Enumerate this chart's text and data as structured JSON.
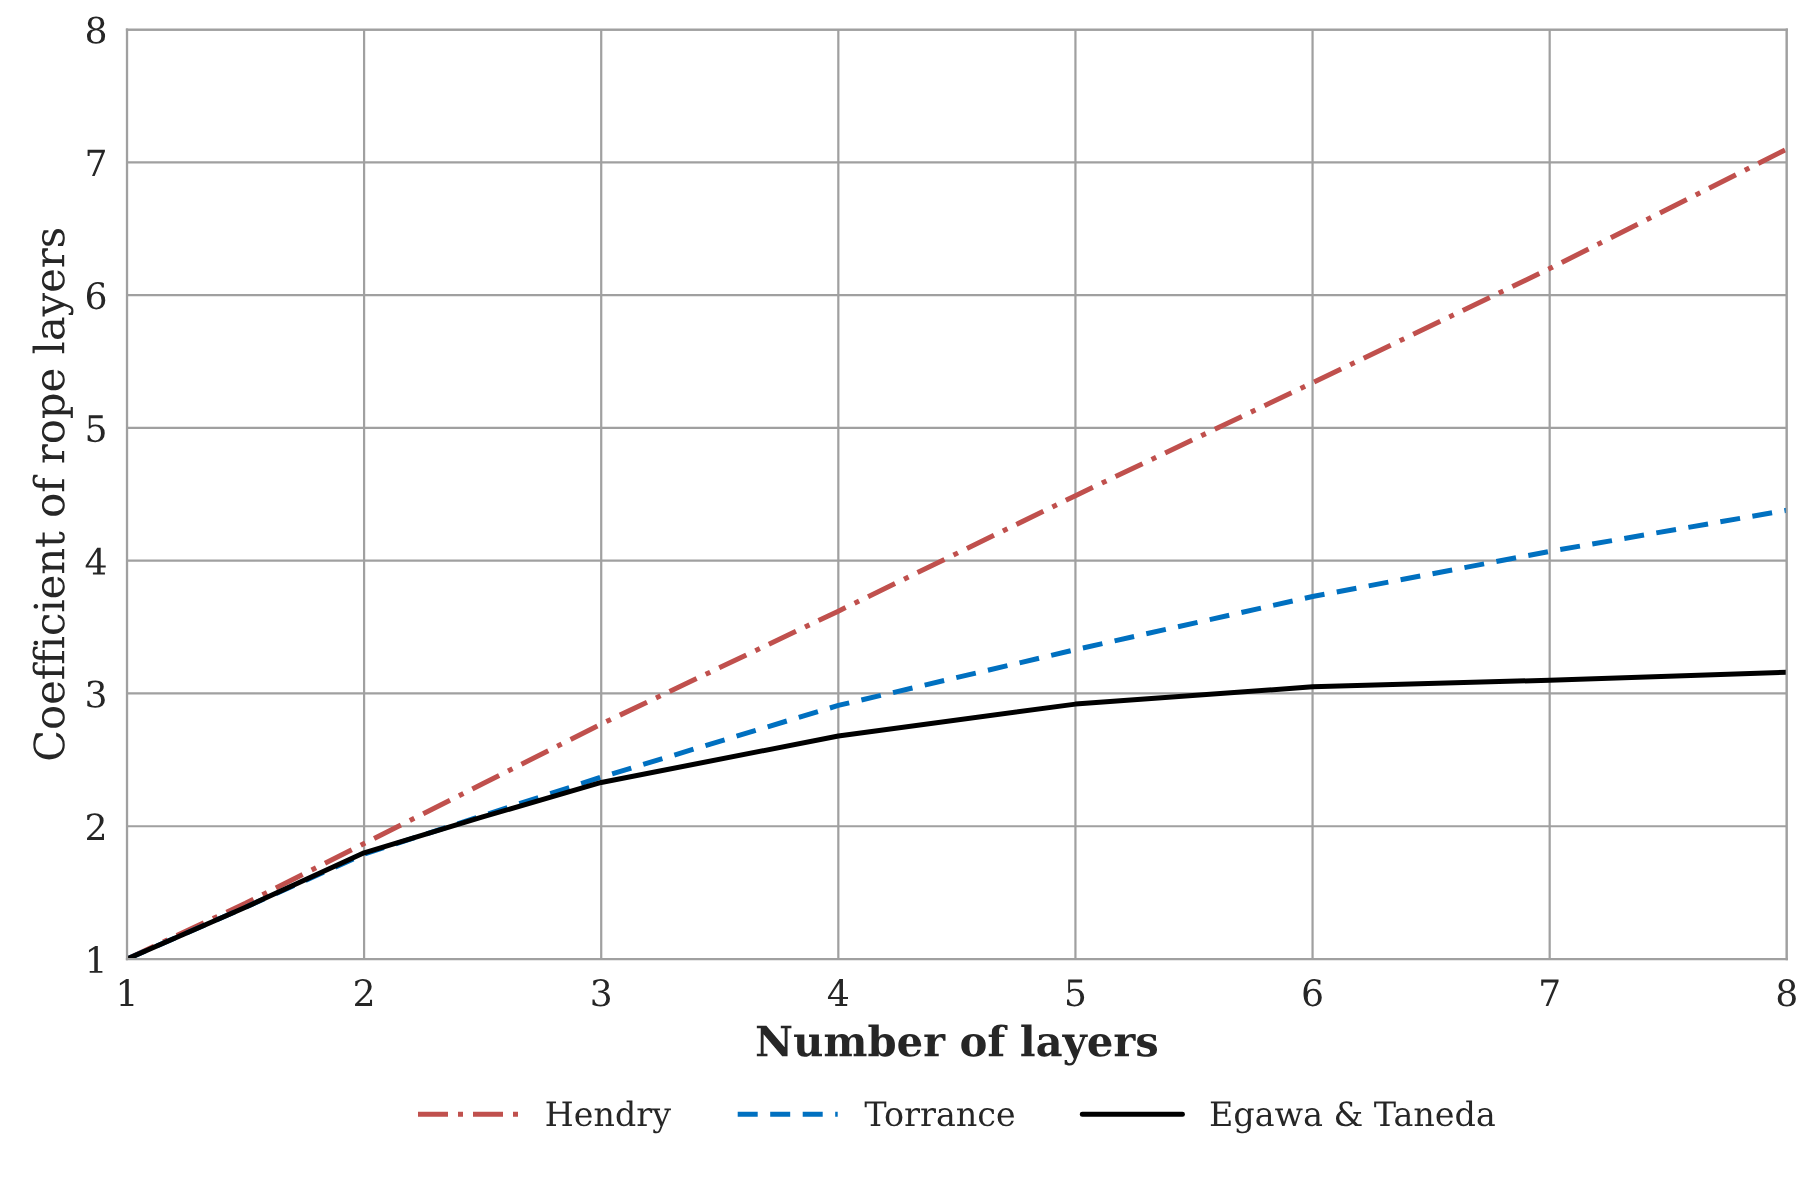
{
  "chart_data": {
    "type": "line",
    "xlabel": "Number of layers",
    "ylabel": "Coefficient of rope layers",
    "x": [
      1,
      1.5,
      2,
      2.5,
      3,
      4,
      5,
      6,
      7,
      8
    ],
    "series": [
      {
        "name": "Hendry",
        "color": "#c0504d",
        "line_style": "dashdot",
        "values": [
          1,
          1.42,
          1.87,
          2.32,
          2.77,
          3.62,
          4.49,
          5.34,
          6.2,
          7.1
        ]
      },
      {
        "name": "Torrance",
        "color": "#0070c0",
        "line_style": "dashed",
        "values": [
          1,
          1.39,
          1.79,
          2.08,
          2.37,
          2.91,
          3.33,
          3.73,
          4.07,
          4.38
        ]
      },
      {
        "name": "Egawa & Taneda",
        "color": "#000000",
        "line_style": "solid",
        "values": [
          1,
          1.39,
          1.8,
          2.07,
          2.33,
          2.68,
          2.92,
          3.05,
          3.1,
          3.16
        ]
      }
    ],
    "xlim": [
      1,
      8
    ],
    "xticks": [
      1,
      2,
      3,
      4,
      5,
      6,
      7,
      8
    ],
    "ylim": [
      1,
      8
    ],
    "yticks": [
      1,
      2,
      3,
      4,
      5,
      6,
      7,
      8
    ],
    "grid": true,
    "legend": "bottom"
  }
}
